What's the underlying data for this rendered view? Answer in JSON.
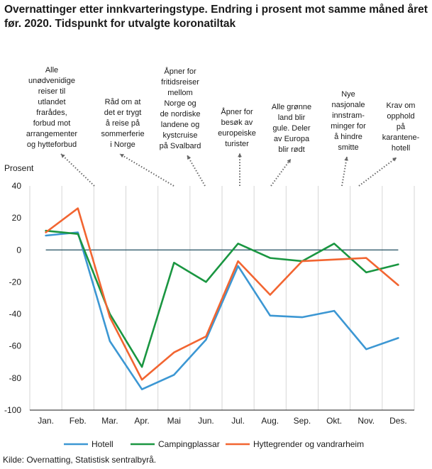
{
  "title": "Overnattinger etter innkvarteringstype. Endring i prosent mot samme måned året før. 2020. Tidspunkt for utvalgte koronatiltak",
  "source": "Kilde: Overnatting, Statistisk sentralbyrå.",
  "chart_data": {
    "type": "line",
    "title": "Overnattinger etter innkvarteringstype. Endring i prosent mot samme måned året før. 2020. Tidspunkt for utvalgte koronatiltak",
    "ylabel": "Prosent",
    "xlabel": "",
    "ylim": [
      -100,
      40
    ],
    "yticks": [
      40,
      20,
      0,
      -20,
      -40,
      -60,
      -80,
      -100
    ],
    "grid": "vertical",
    "categories": [
      "Jan.",
      "Feb.",
      "Mar.",
      "Apr.",
      "Mai",
      "Jun.",
      "Jul.",
      "Aug.",
      "Sep.",
      "Okt.",
      "Nov.",
      "Des."
    ],
    "series": [
      {
        "name": "Hotell",
        "color": "#3c97d3",
        "values": [
          9,
          11,
          -57,
          -87,
          -78,
          -56,
          -10,
          -41,
          -42,
          -38,
          -62,
          -55
        ]
      },
      {
        "name": "Campingplassar",
        "color": "#1a9641",
        "values": [
          12,
          10,
          -40,
          -73,
          -8,
          -20,
          4,
          -5,
          -7,
          4,
          -14,
          -9
        ]
      },
      {
        "name": "Hyttegrender og vandrarheim",
        "color": "#f26531",
        "values": [
          11,
          26,
          -42,
          -81,
          -64,
          -54,
          -7,
          -28,
          -7,
          -6,
          -5,
          -22
        ]
      }
    ],
    "annotations": [
      {
        "text": [
          "Alle",
          "unødvenidige",
          "reiser til",
          "utlandet",
          "frarådes,",
          "forbud mot",
          "arrangementer",
          "og hytteforbud"
        ],
        "month": 2.05
      },
      {
        "text": [
          "Råd om at",
          "det er trygt",
          "å reise på",
          "sommerferie",
          "i Norge"
        ],
        "month": 4.05
      },
      {
        "text": [
          "Åpner for",
          "fritidsreiser",
          "mellom",
          "Norge og",
          "de nordiske",
          "landene og",
          "kystcruise",
          "på Svalbard"
        ],
        "month": 5.0
      },
      {
        "text": [
          "Åpner for",
          "besøk av",
          "europeiske",
          "turister"
        ],
        "month": 6.0
      },
      {
        "text": [
          "Alle grønne",
          "land blir",
          "gule. Deler",
          "av Europa",
          "blir rødt"
        ],
        "month": 7.0
      },
      {
        "text": [
          "Nye",
          "nasjonale",
          "innstram-",
          "minger for",
          "å hindre",
          "smitte"
        ],
        "month": 9.25
      },
      {
        "text": [
          "Krav om",
          "opphold",
          "på",
          "karantene-",
          "hotell"
        ],
        "month": 9.8
      }
    ]
  }
}
